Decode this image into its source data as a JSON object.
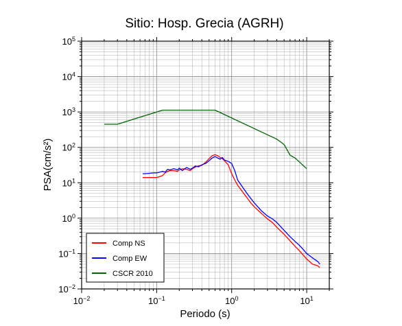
{
  "chart_data": {
    "type": "line",
    "title": "Sitio: Hosp. Grecia (AGRH)",
    "xlabel": "Periodo (s)",
    "ylabel": "PSA(cm/s²)",
    "xscale": "log",
    "yscale": "log",
    "xlim": [
      0.01,
      20
    ],
    "ylim": [
      0.01,
      100000
    ],
    "grid": true,
    "legend_position": "bottom-left",
    "x_ticks": [
      {
        "base": "10",
        "exp": "−2"
      },
      {
        "base": "10",
        "exp": "−1"
      },
      {
        "base": "10",
        "exp": "0"
      },
      {
        "base": "10",
        "exp": "1"
      }
    ],
    "y_ticks": [
      {
        "base": "10",
        "exp": "−2"
      },
      {
        "base": "10",
        "exp": "−1"
      },
      {
        "base": "10",
        "exp": "0"
      },
      {
        "base": "10",
        "exp": "1"
      },
      {
        "base": "10",
        "exp": "2"
      },
      {
        "base": "10",
        "exp": "3"
      },
      {
        "base": "10",
        "exp": "4"
      },
      {
        "base": "10",
        "exp": "5"
      }
    ],
    "series": [
      {
        "name": "Comp NS",
        "color": "#ff0000",
        "x": [
          0.065,
          0.07,
          0.08,
          0.09,
          0.1,
          0.11,
          0.12,
          0.13,
          0.14,
          0.15,
          0.17,
          0.19,
          0.2,
          0.22,
          0.25,
          0.28,
          0.3,
          0.33,
          0.36,
          0.4,
          0.45,
          0.5,
          0.55,
          0.6,
          0.65,
          0.7,
          0.75,
          0.8,
          0.9,
          1.0,
          1.1,
          1.2,
          1.4,
          1.6,
          1.8,
          2.0,
          2.5,
          3.0,
          3.5,
          4.0,
          5.0,
          6.0,
          7.0,
          8.0,
          9.0,
          10.0,
          12.0,
          14.0,
          15.0
        ],
        "y": [
          14,
          14,
          14,
          14,
          14,
          15,
          16,
          19,
          21,
          22,
          22,
          21,
          23,
          25,
          24,
          22,
          25,
          28,
          30,
          31,
          38,
          48,
          58,
          62,
          58,
          52,
          48,
          42,
          32,
          18,
          12,
          8.5,
          5.5,
          3.8,
          2.7,
          2.1,
          1.35,
          0.95,
          0.75,
          0.55,
          0.35,
          0.23,
          0.16,
          0.12,
          0.09,
          0.07,
          0.05,
          0.045,
          0.04
        ]
      },
      {
        "name": "Comp EW",
        "color": "#0000ff",
        "x": [
          0.065,
          0.07,
          0.08,
          0.09,
          0.1,
          0.11,
          0.12,
          0.13,
          0.14,
          0.15,
          0.17,
          0.19,
          0.2,
          0.22,
          0.25,
          0.28,
          0.3,
          0.33,
          0.36,
          0.4,
          0.45,
          0.5,
          0.55,
          0.6,
          0.65,
          0.7,
          0.75,
          0.8,
          0.9,
          1.0,
          1.1,
          1.2,
          1.4,
          1.6,
          1.8,
          2.0,
          2.5,
          3.0,
          3.5,
          4.0,
          5.0,
          6.0,
          7.0,
          8.0,
          9.0,
          10.0,
          12.0,
          14.0,
          15.0
        ],
        "y": [
          18,
          18,
          18.5,
          19,
          19,
          20,
          21,
          20,
          24,
          23,
          25,
          23,
          26,
          22,
          27,
          24,
          26,
          30,
          28,
          32,
          35,
          42,
          50,
          55,
          50,
          46,
          52,
          44,
          40,
          35,
          22,
          12,
          7.5,
          5.0,
          3.6,
          2.7,
          1.6,
          1.15,
          0.95,
          0.75,
          0.45,
          0.3,
          0.22,
          0.17,
          0.13,
          0.1,
          0.075,
          0.06,
          0.05
        ]
      },
      {
        "name": "CSCR 2010",
        "color": "#006400",
        "x": [
          0.02,
          0.03,
          0.12,
          0.6,
          4.0,
          5.0,
          6.0,
          7.0,
          10.0
        ],
        "y": [
          450,
          450,
          1125,
          1125,
          170,
          120,
          60,
          50,
          25
        ]
      }
    ]
  }
}
